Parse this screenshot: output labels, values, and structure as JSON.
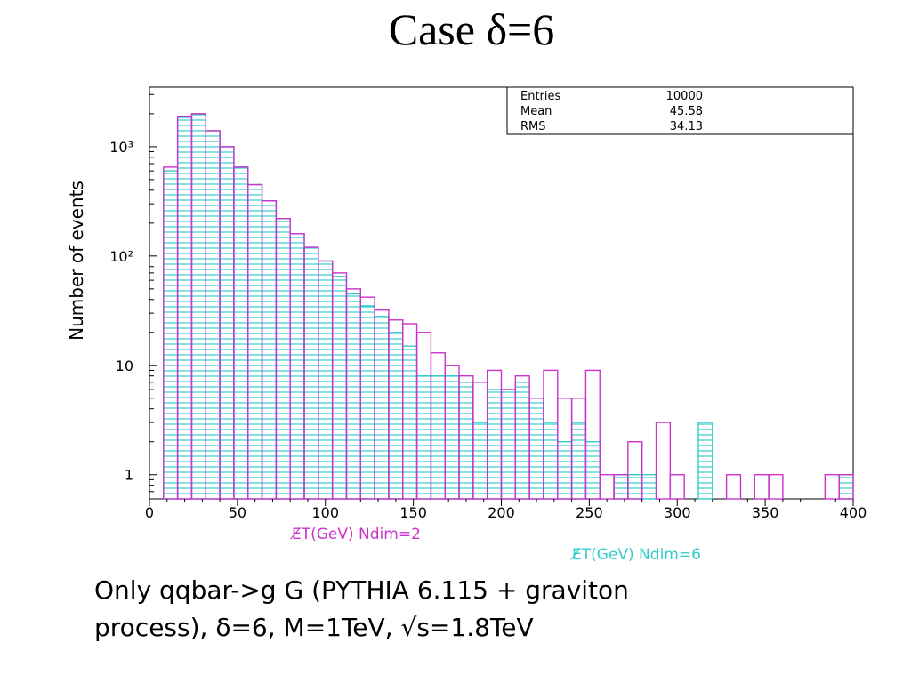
{
  "slide": {
    "title": "Case δ=6",
    "caption_line1": "Only qqbar->g G (PYTHIA 6.115 + graviton",
    "caption_line2": "process), δ=6, M=1TeV, √s=1.8TeV"
  },
  "stats": [
    {
      "label": "Entries",
      "value": "10000"
    },
    {
      "label": "Mean",
      "value": "45.58"
    },
    {
      "label": "RMS",
      "value": "34.13"
    }
  ],
  "colors": {
    "ndim2": "#cc33cc",
    "ndim6": "#33cccc",
    "frame": "#000000"
  },
  "chart_data": {
    "type": "bar",
    "ylabel": "Number of events",
    "yscale": "log",
    "xlim": [
      0,
      400
    ],
    "ylim": [
      0.6,
      3500
    ],
    "bin_width": 8,
    "x_ticks": [
      "0",
      "50",
      "100",
      "150",
      "200",
      "250",
      "300",
      "350",
      "400"
    ],
    "y_ticks": [
      {
        "value": 1,
        "label": "1"
      },
      {
        "value": 10,
        "label": "10"
      },
      {
        "value": 100,
        "label": "10²"
      },
      {
        "value": 1000,
        "label": "10³"
      }
    ],
    "series": [
      {
        "name": "E̸T(GeV) Ndim=2",
        "style": "outline",
        "bin_edges_start": [
          0,
          8,
          16,
          24,
          32,
          40,
          48,
          56,
          64,
          72,
          80,
          88,
          96,
          104,
          112,
          120,
          128,
          136,
          144,
          152,
          160,
          168,
          176,
          184,
          192,
          200,
          208,
          216,
          224,
          232,
          240,
          248,
          256,
          264,
          272,
          280,
          288,
          296,
          304,
          312,
          320,
          328,
          336,
          344,
          352,
          360,
          368,
          376,
          384,
          392
        ],
        "values": [
          0,
          650,
          1900,
          2000,
          1400,
          1000,
          650,
          450,
          320,
          220,
          160,
          120,
          90,
          70,
          50,
          42,
          32,
          26,
          24,
          20,
          13,
          10,
          8,
          7,
          9,
          6,
          8,
          5,
          9,
          5,
          5,
          9,
          1,
          1,
          2,
          0,
          3,
          1,
          0,
          0,
          0,
          1,
          0,
          1,
          1,
          0,
          0,
          0,
          1,
          1
        ]
      },
      {
        "name": "E̸T(GeV) Ndim=6",
        "style": "hatched",
        "bin_edges_start": [
          0,
          8,
          16,
          24,
          32,
          40,
          48,
          56,
          64,
          72,
          80,
          88,
          96,
          104,
          112,
          120,
          128,
          136,
          144,
          152,
          160,
          168,
          176,
          184,
          192,
          200,
          208,
          216,
          224,
          232,
          240,
          248,
          256,
          264,
          272,
          280,
          288,
          296,
          304,
          312,
          320,
          328,
          336,
          344,
          352,
          360,
          368,
          376,
          384,
          392
        ],
        "values": [
          0,
          600,
          1850,
          2000,
          1400,
          1000,
          650,
          450,
          320,
          220,
          160,
          120,
          90,
          65,
          45,
          35,
          28,
          20,
          15,
          8,
          8,
          8,
          7,
          3,
          6,
          6,
          7,
          5,
          3,
          2,
          3,
          2,
          0,
          1,
          1,
          1,
          0,
          0,
          0,
          3,
          0,
          0,
          0,
          0,
          0,
          0,
          0,
          0,
          0,
          1
        ]
      }
    ]
  }
}
